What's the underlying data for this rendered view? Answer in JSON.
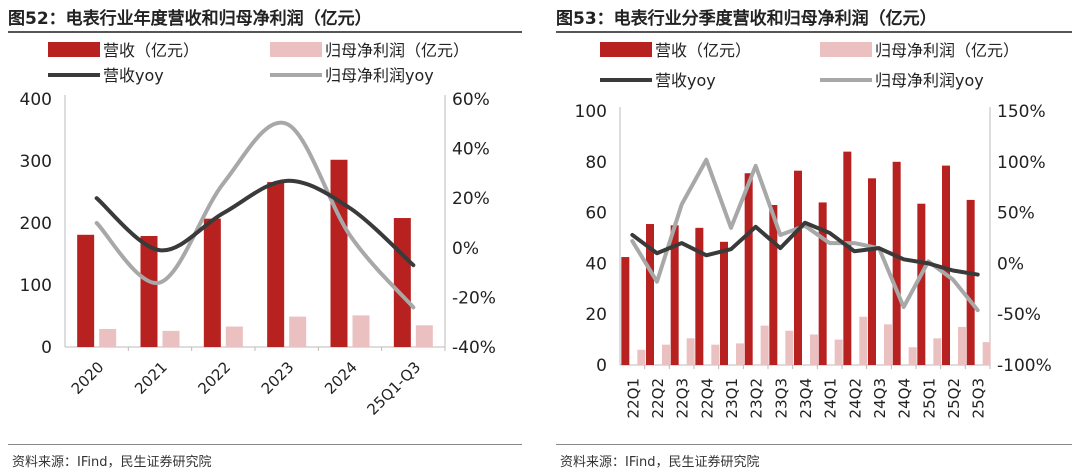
{
  "charts": [
    {
      "title": "图52：电表行业年度营收和归母净利润（亿元）",
      "source": "资料来源：IFind，民生证券研究院",
      "legend": {
        "revenue": "营收（亿元）",
        "profit": "归母净利润（亿元）",
        "revenue_yoy": "营收yoy",
        "profit_yoy": "归母净利润yoy"
      }
    },
    {
      "title": "图53：电表行业分季度营收和归母净利润（亿元）",
      "source": "资料来源：IFind，民生证券研究院",
      "legend": {
        "revenue": "营收（亿元）",
        "profit": "归母净利润（亿元）",
        "revenue_yoy": "营收yoy",
        "profit_yoy": "归母净利润yoy"
      }
    }
  ],
  "colors": {
    "revenue_bar": "#b7211f",
    "profit_bar": "#eac0c0",
    "revenue_yoy_line": "#3a3a3a",
    "profit_yoy_line": "#a8a8a8"
  },
  "chart_data": [
    {
      "type": "bar",
      "categories": [
        "2020",
        "2021",
        "2022",
        "2023",
        "2024",
        "25Q1-Q3"
      ],
      "series": [
        {
          "name": "营收（亿元）",
          "axis": "left",
          "kind": "bar",
          "values": [
            181,
            179,
            207,
            266,
            302,
            208
          ]
        },
        {
          "name": "归母净利润（亿元）",
          "axis": "left",
          "kind": "bar",
          "values": [
            29,
            26,
            33,
            49,
            51,
            35
          ]
        },
        {
          "name": "营收yoy",
          "axis": "right",
          "kind": "line",
          "values": [
            20,
            -1,
            14,
            27,
            16,
            -7
          ]
        },
        {
          "name": "归母净利润yoy",
          "axis": "right",
          "kind": "line",
          "values": [
            10,
            -14,
            26,
            50,
            5,
            -24
          ]
        }
      ],
      "y_left": {
        "min": 0,
        "max": 400,
        "ticks": [
          "0",
          "100",
          "200",
          "300",
          "400"
        ]
      },
      "y_right": {
        "min": -40,
        "max": 60,
        "ticks": [
          "-40%",
          "-20%",
          "0%",
          "20%",
          "40%",
          "60%"
        ]
      },
      "legend_position": "top"
    },
    {
      "type": "bar",
      "categories": [
        "22Q1",
        "22Q2",
        "22Q3",
        "22Q4",
        "23Q1",
        "23Q2",
        "23Q3",
        "23Q4",
        "24Q1",
        "24Q2",
        "24Q3",
        "24Q4",
        "25Q1",
        "25Q2",
        "25Q3"
      ],
      "series": [
        {
          "name": "营收（亿元）",
          "axis": "left",
          "kind": "bar",
          "values": [
            42.5,
            55.5,
            55,
            54,
            48.5,
            75.5,
            63,
            76.5,
            64,
            84,
            73.5,
            80,
            63.5,
            78.5,
            65
          ]
        },
        {
          "name": "归母净利润（亿元）",
          "axis": "left",
          "kind": "bar",
          "values": [
            6,
            8,
            10.5,
            8,
            8.5,
            15.5,
            13.5,
            12,
            10,
            19,
            16,
            7,
            10.5,
            15,
            9
          ]
        },
        {
          "name": "营收yoy",
          "axis": "right",
          "kind": "line",
          "values": [
            28,
            10,
            20,
            8,
            14,
            36,
            15,
            40,
            30,
            12,
            15,
            4,
            0,
            -7,
            -11
          ]
        },
        {
          "name": "归母净利润yoy",
          "axis": "right",
          "kind": "line",
          "values": [
            22,
            -18,
            58,
            102,
            35,
            96,
            28,
            37,
            20,
            20,
            15,
            -43,
            2,
            -16,
            -46
          ]
        }
      ],
      "y_left": {
        "min": 0,
        "max": 100,
        "ticks": [
          "0",
          "20",
          "40",
          "60",
          "80",
          "100"
        ]
      },
      "y_right": {
        "min": -100,
        "max": 150,
        "ticks": [
          "-100%",
          "-50%",
          "0%",
          "50%",
          "100%",
          "150%"
        ]
      },
      "legend_position": "top"
    }
  ]
}
